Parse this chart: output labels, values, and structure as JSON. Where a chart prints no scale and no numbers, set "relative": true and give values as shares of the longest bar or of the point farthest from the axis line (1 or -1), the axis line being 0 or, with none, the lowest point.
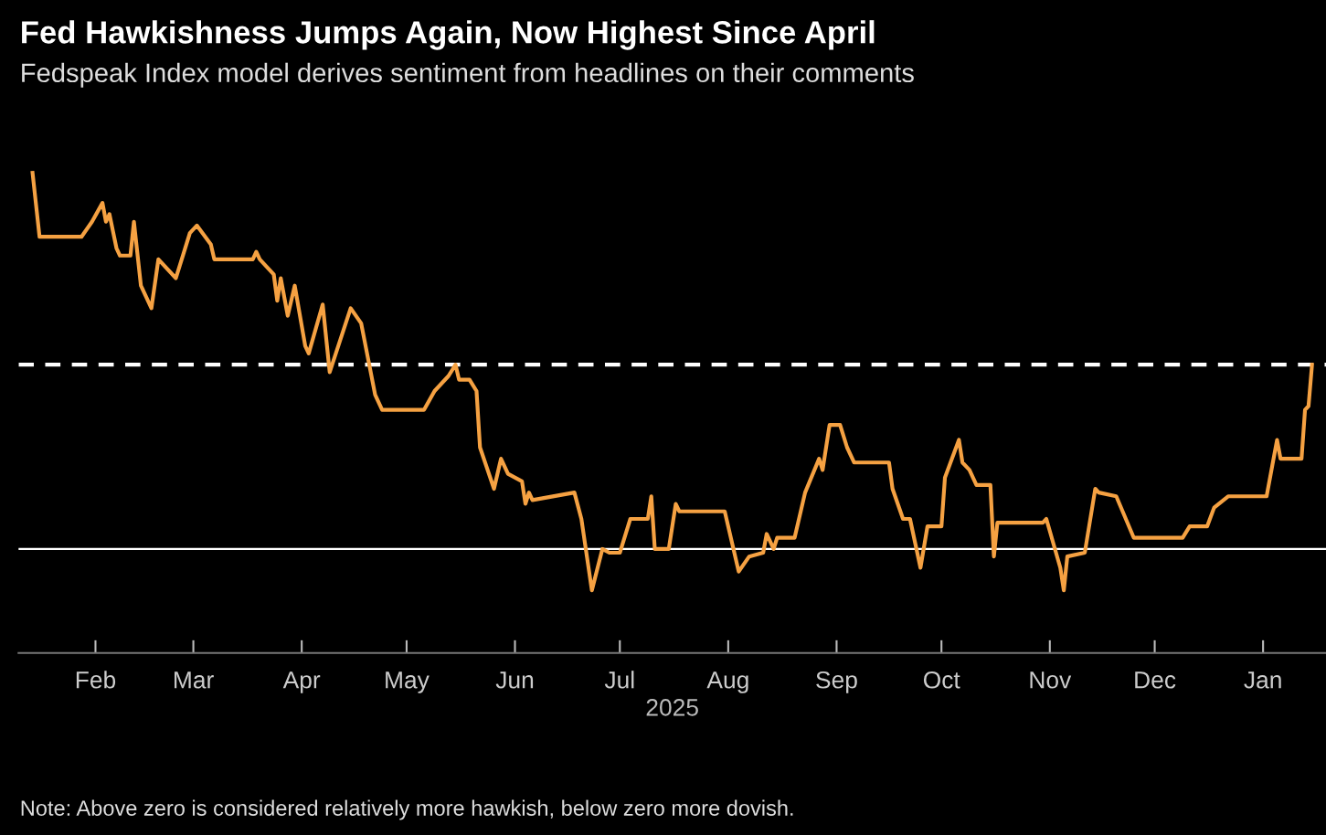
{
  "chart_data": {
    "type": "line",
    "title": "Fed Hawkishness Jumps Again, Now Highest Since April",
    "subtitle": "Fedspeak Index model derives sentiment from headlines on their comments",
    "xlabel": "2025",
    "annotations": [
      "Note: Above zero is considered relatively more hawkish, below zero more dovish."
    ],
    "relative": true,
    "xlim": [
      "2025-01-10",
      "2026-01-19"
    ],
    "xticks": [
      {
        "value": "2025-02-01",
        "label": "Feb"
      },
      {
        "value": "2025-03-01",
        "label": "Mar"
      },
      {
        "value": "2025-04-01",
        "label": "Apr"
      },
      {
        "value": "2025-05-01",
        "label": "May"
      },
      {
        "value": "2025-06-01",
        "label": "Jun"
      },
      {
        "value": "2025-07-01",
        "label": "Jul"
      },
      {
        "value": "2025-08-01",
        "label": "Aug"
      },
      {
        "value": "2025-09-01",
        "label": "Sep"
      },
      {
        "value": "2025-10-01",
        "label": "Oct"
      },
      {
        "value": "2025-11-01",
        "label": "Nov"
      },
      {
        "value": "2025-12-01",
        "label": "Dec"
      },
      {
        "value": "2026-01-01",
        "label": "Jan"
      }
    ],
    "ref_lines": [
      {
        "axis": "y",
        "value": 0.49,
        "label": null,
        "color": "#ffffff",
        "line_style": "dashed"
      }
    ],
    "grid": false,
    "legend": false,
    "marker": "none",
    "line_style": "solid",
    "series": [
      {
        "color": "#f5a142",
        "x": [
          "2025-01-14",
          "2025-01-16",
          "2025-01-28",
          "2025-01-31",
          "2025-02-03",
          "2025-02-04",
          "2025-02-05",
          "2025-02-07",
          "2025-02-08",
          "2025-02-11",
          "2025-02-12",
          "2025-02-14",
          "2025-02-17",
          "2025-02-19",
          "2025-02-24",
          "2025-02-26",
          "2025-02-28",
          "2025-03-02",
          "2025-03-06",
          "2025-03-07",
          "2025-03-18",
          "2025-03-19",
          "2025-03-20",
          "2025-03-24",
          "2025-03-25",
          "2025-03-26",
          "2025-03-28",
          "2025-03-30",
          "2025-04-02",
          "2025-04-03",
          "2025-04-07",
          "2025-04-09",
          "2025-04-15",
          "2025-04-18",
          "2025-04-22",
          "2025-04-24",
          "2025-05-06",
          "2025-05-09",
          "2025-05-13",
          "2025-05-15",
          "2025-05-16",
          "2025-05-19",
          "2025-05-21",
          "2025-05-22",
          "2025-05-26",
          "2025-05-28",
          "2025-05-30",
          "2025-06-03",
          "2025-06-04",
          "2025-06-05",
          "2025-06-06",
          "2025-06-18",
          "2025-06-20",
          "2025-06-23",
          "2025-06-26",
          "2025-06-28",
          "2025-07-01",
          "2025-07-04",
          "2025-07-09",
          "2025-07-10",
          "2025-07-11",
          "2025-07-15",
          "2025-07-17",
          "2025-07-18",
          "2025-07-31",
          "2025-08-04",
          "2025-08-07",
          "2025-08-11",
          "2025-08-12",
          "2025-08-14",
          "2025-08-15",
          "2025-08-20",
          "2025-08-23",
          "2025-08-27",
          "2025-08-28",
          "2025-08-30",
          "2025-09-02",
          "2025-09-04",
          "2025-09-06",
          "2025-09-16",
          "2025-09-17",
          "2025-09-20",
          "2025-09-22",
          "2025-09-25",
          "2025-09-27",
          "2025-10-01",
          "2025-10-02",
          "2025-10-06",
          "2025-10-07",
          "2025-10-09",
          "2025-10-11",
          "2025-10-15",
          "2025-10-16",
          "2025-10-17",
          "2025-10-30",
          "2025-10-31",
          "2025-11-04",
          "2025-11-05",
          "2025-11-06",
          "2025-11-11",
          "2025-11-14",
          "2025-11-15",
          "2025-11-20",
          "2025-11-25",
          "2025-12-09",
          "2025-12-11",
          "2025-12-16",
          "2025-12-18",
          "2025-12-22",
          "2026-01-02",
          "2026-01-05",
          "2026-01-06",
          "2026-01-12",
          "2026-01-13",
          "2026-01-14",
          "2026-01-15"
        ],
        "values": [
          1.0,
          0.83,
          0.83,
          0.87,
          0.92,
          0.87,
          0.89,
          0.8,
          0.78,
          0.78,
          0.87,
          0.7,
          0.64,
          0.77,
          0.72,
          0.78,
          0.84,
          0.86,
          0.81,
          0.77,
          0.77,
          0.79,
          0.77,
          0.73,
          0.66,
          0.72,
          0.62,
          0.7,
          0.54,
          0.52,
          0.65,
          0.47,
          0.64,
          0.6,
          0.41,
          0.37,
          0.37,
          0.42,
          0.46,
          0.49,
          0.45,
          0.45,
          0.42,
          0.27,
          0.16,
          0.24,
          0.2,
          0.18,
          0.12,
          0.15,
          0.13,
          0.15,
          0.08,
          -0.11,
          0.0,
          -0.01,
          -0.01,
          0.08,
          0.08,
          0.14,
          0.0,
          0.0,
          0.12,
          0.1,
          0.1,
          -0.06,
          -0.02,
          -0.01,
          0.04,
          0.0,
          0.03,
          0.03,
          0.15,
          0.24,
          0.21,
          0.33,
          0.33,
          0.27,
          0.23,
          0.23,
          0.16,
          0.08,
          0.08,
          -0.05,
          0.06,
          0.06,
          0.19,
          0.29,
          0.23,
          0.21,
          0.17,
          0.17,
          -0.02,
          0.07,
          0.07,
          0.08,
          -0.05,
          -0.11,
          -0.02,
          -0.01,
          0.16,
          0.15,
          0.14,
          0.03,
          0.03,
          0.06,
          0.06,
          0.11,
          0.14,
          0.14,
          0.29,
          0.24,
          0.24,
          0.37,
          0.38,
          0.49
        ]
      }
    ]
  }
}
